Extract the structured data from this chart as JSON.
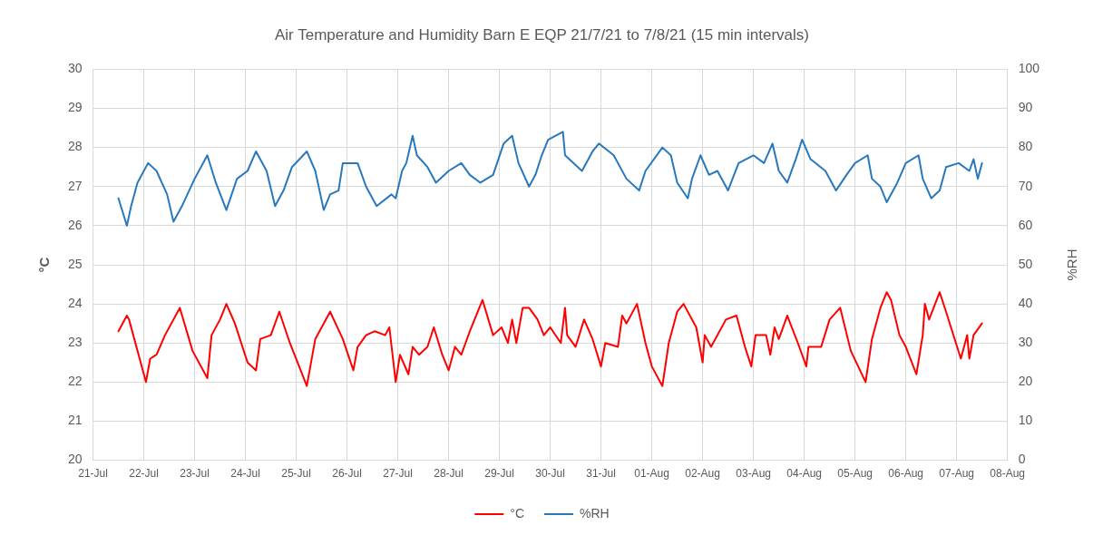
{
  "chart_data": {
    "type": "line",
    "title": "Air Temperature and Humidity Barn E EQP 21/7/21 to 7/8/21 (15 min intervals)",
    "ylabel": "°C",
    "y2label": "%RH",
    "xlim": [
      "--07-21",
      "--08-08"
    ],
    "xticks": [
      {
        "value": "--07-21",
        "label": "21-Jul"
      },
      {
        "value": "--07-22",
        "label": "22-Jul"
      },
      {
        "value": "--07-23",
        "label": "23-Jul"
      },
      {
        "value": "--07-24",
        "label": "24-Jul"
      },
      {
        "value": "--07-25",
        "label": "25-Jul"
      },
      {
        "value": "--07-26",
        "label": "26-Jul"
      },
      {
        "value": "--07-27",
        "label": "27-Jul"
      },
      {
        "value": "--07-28",
        "label": "28-Jul"
      },
      {
        "value": "--07-29",
        "label": "29-Jul"
      },
      {
        "value": "--07-30",
        "label": "30-Jul"
      },
      {
        "value": "--07-31",
        "label": "31-Jul"
      },
      {
        "value": "--08-01",
        "label": "01-Aug"
      },
      {
        "value": "--08-02",
        "label": "02-Aug"
      },
      {
        "value": "--08-03",
        "label": "03-Aug"
      },
      {
        "value": "--08-04",
        "label": "04-Aug"
      },
      {
        "value": "--08-05",
        "label": "05-Aug"
      },
      {
        "value": "--08-06",
        "label": "06-Aug"
      },
      {
        "value": "--08-07",
        "label": "07-Aug"
      },
      {
        "value": "--08-08",
        "label": "08-Aug"
      }
    ],
    "ylim": [
      20,
      30
    ],
    "yticks": [
      20,
      21,
      22,
      23,
      24,
      25,
      26,
      27,
      28,
      29,
      30
    ],
    "y2lim": [
      0,
      100
    ],
    "y2ticks": [
      0,
      10,
      20,
      30,
      40,
      50,
      60,
      70,
      80,
      90,
      100
    ],
    "grid": true,
    "legend": "bottom",
    "series": [
      {
        "name": "°C",
        "color": "#ff0000",
        "x": [
          "--07-21T12:00",
          "--07-21T16:00",
          "--07-21T17:00",
          "--07-22T01:00",
          "--07-22T03:00",
          "--07-22T06:00",
          "--07-22T10:00",
          "--07-22T17:00",
          "--07-22T23:00",
          "--07-23T06:00",
          "--07-23T08:00",
          "--07-23T12:00",
          "--07-23T15:00",
          "--07-23T19:00",
          "--07-24T01:00",
          "--07-24T05:00",
          "--07-24T07:00",
          "--07-24T12:00",
          "--07-24T16:00",
          "--07-24T21:00",
          "--07-25T05:00",
          "--07-25T09:00",
          "--07-25T16:00",
          "--07-25T22:00",
          "--07-26T03:00",
          "--07-26T05:00",
          "--07-26T09:00",
          "--07-26T13:00",
          "--07-26T18:00",
          "--07-26T20:00",
          "--07-26T23:00",
          "--07-27T01:00",
          "--07-27T05:00",
          "--07-27T07:00",
          "--07-27T10:00",
          "--07-27T14:00",
          "--07-27T17:00",
          "--07-27T21:00",
          "--07-28T00:00",
          "--07-28T03:00",
          "--07-28T06:00",
          "--07-28T10:00",
          "--07-28T16:00",
          "--07-28T21:00",
          "--07-29T01:00",
          "--07-29T04:00",
          "--07-29T06:00",
          "--07-29T08:00",
          "--07-29T11:00",
          "--07-29T14:00",
          "--07-29T18:00",
          "--07-29T21:00",
          "--07-30T00:00",
          "--07-30T05:00",
          "--07-30T07:00",
          "--07-30T08:00",
          "--07-30T12:00",
          "--07-30T16:00",
          "--07-30T20:00",
          "--07-31T00:00",
          "--07-31T02:00",
          "--07-31T08:00",
          "--07-31T10:00",
          "--07-31T12:00",
          "--07-31T17:00",
          "--07-31T21:00",
          "--08-01T00:00",
          "--08-01T05:00",
          "--08-01T08:00",
          "--08-01T12:00",
          "--08-01T15:00",
          "--08-01T21:00",
          "--08-02T00:00",
          "--08-02T01:00",
          "--08-02T04:00",
          "--08-02T11:00",
          "--08-02T16:00",
          "--08-02T20:00",
          "--08-02T23:00",
          "--08-03T01:00",
          "--08-03T06:00",
          "--08-03T08:00",
          "--08-03T10:00",
          "--08-03T12:00",
          "--08-03T16:00",
          "--08-03T21:00",
          "--08-04T01:00",
          "--08-04T02:00",
          "--08-04T08:00",
          "--08-04T12:00",
          "--08-04T17:00",
          "--08-04T22:00",
          "--08-05T05:00",
          "--08-05T08:00",
          "--08-05T12:00",
          "--08-05T15:00",
          "--08-05T17:00",
          "--08-05T21:00",
          "--08-06T00:00",
          "--08-06T05:00",
          "--08-06T08:00",
          "--08-06T09:00",
          "--08-06T11:00",
          "--08-06T16:00",
          "--08-06T19:00",
          "--08-07T02:00",
          "--08-07T05:00",
          "--08-07T06:00",
          "--08-07T08:00",
          "--08-07T12:00"
        ],
        "values": [
          23.3,
          23.7,
          23.6,
          22.0,
          22.6,
          22.7,
          23.2,
          23.9,
          22.8,
          22.1,
          23.2,
          23.6,
          24.0,
          23.5,
          22.5,
          22.3,
          23.1,
          23.2,
          23.8,
          23.0,
          21.9,
          23.1,
          23.8,
          23.1,
          22.3,
          22.9,
          23.2,
          23.3,
          23.2,
          23.4,
          22.0,
          22.7,
          22.2,
          22.9,
          22.7,
          22.9,
          23.4,
          22.7,
          22.3,
          22.9,
          22.7,
          23.3,
          24.1,
          23.2,
          23.4,
          23.0,
          23.6,
          23.0,
          23.9,
          23.9,
          23.6,
          23.2,
          23.4,
          23.0,
          23.9,
          23.2,
          22.9,
          23.6,
          23.1,
          22.4,
          23.0,
          22.9,
          23.7,
          23.5,
          24.0,
          23.0,
          22.4,
          21.9,
          23.0,
          23.8,
          24.0,
          23.4,
          22.5,
          23.2,
          22.9,
          23.6,
          23.7,
          22.9,
          22.4,
          23.2,
          23.2,
          22.7,
          23.4,
          23.1,
          23.7,
          23.0,
          22.4,
          22.9,
          22.9,
          23.6,
          23.9,
          22.8,
          22.0,
          23.1,
          23.9,
          24.3,
          24.1,
          23.2,
          22.9,
          22.2,
          23.2,
          24.0,
          23.6,
          24.3,
          23.8,
          22.6,
          23.2,
          22.6,
          23.2,
          23.5
        ]
      },
      {
        "name": "%RH",
        "color": "#2878bd",
        "axis": "y2",
        "x": [
          "--07-21T12:00",
          "--07-21T16:00",
          "--07-21T18:00",
          "--07-21T21:00",
          "--07-22T02:00",
          "--07-22T06:00",
          "--07-22T11:00",
          "--07-22T14:00",
          "--07-22T18:00",
          "--07-23T00:00",
          "--07-23T06:00",
          "--07-23T10:00",
          "--07-23T15:00",
          "--07-23T20:00",
          "--07-24T01:00",
          "--07-24T05:00",
          "--07-24T10:00",
          "--07-24T14:00",
          "--07-24T18:00",
          "--07-24T22:00",
          "--07-25T05:00",
          "--07-25T09:00",
          "--07-25T13:00",
          "--07-25T16:00",
          "--07-25T20:00",
          "--07-25T22:00",
          "--07-26T05:00",
          "--07-26T09:00",
          "--07-26T14:00",
          "--07-26T21:00",
          "--07-26T23:00",
          "--07-27T02:00",
          "--07-27T04:00",
          "--07-27T07:00",
          "--07-27T09:00",
          "--07-27T14:00",
          "--07-27T18:00",
          "--07-28T00:00",
          "--07-28T06:00",
          "--07-28T10:00",
          "--07-28T15:00",
          "--07-28T21:00",
          "--07-29T02:00",
          "--07-29T06:00",
          "--07-29T09:00",
          "--07-29T14:00",
          "--07-29T17:00",
          "--07-29T20:00",
          "--07-29T23:00",
          "--07-30T06:00",
          "--07-30T07:00",
          "--07-30T15:00",
          "--07-30T20:00",
          "--07-30T23:00",
          "--07-31T06:00",
          "--07-31T12:00",
          "--07-31T18:00",
          "--07-31T21:00",
          "--08-01T05:00",
          "--08-01T09:00",
          "--08-01T12:00",
          "--08-01T17:00",
          "--08-01T19:00",
          "--08-01T23:00",
          "--08-02T03:00",
          "--08-02T07:00",
          "--08-02T12:00",
          "--08-02T17:00",
          "--08-03T00:00",
          "--08-03T05:00",
          "--08-03T09:00",
          "--08-03T12:00",
          "--08-03T16:00",
          "--08-03T20:00",
          "--08-03T23:00",
          "--08-04T03:00",
          "--08-04T10:00",
          "--08-04T15:00",
          "--08-04T20:00",
          "--08-05T00:00",
          "--08-05T06:00",
          "--08-05T08:00",
          "--08-05T12:00",
          "--08-05T15:00",
          "--08-05T20:00",
          "--08-06T00:00",
          "--08-06T06:00",
          "--08-06T08:00",
          "--08-06T12:00",
          "--08-06T16:00",
          "--08-06T19:00",
          "--08-07T01:00",
          "--08-07T06:00",
          "--08-07T08:00",
          "--08-07T10:00",
          "--08-07T12:00"
        ],
        "values": [
          67,
          60,
          65,
          71,
          76,
          74,
          68,
          61,
          65,
          72,
          78,
          71,
          64,
          72,
          74,
          79,
          74,
          65,
          69,
          75,
          79,
          74,
          64,
          68,
          69,
          76,
          76,
          70,
          65,
          68,
          67,
          74,
          76,
          83,
          78,
          75,
          71,
          74,
          76,
          73,
          71,
          73,
          81,
          83,
          76,
          70,
          73,
          78,
          82,
          84,
          78,
          74,
          79,
          81,
          78,
          72,
          69,
          74,
          80,
          78,
          71,
          67,
          72,
          78,
          73,
          74,
          69,
          76,
          78,
          76,
          81,
          74,
          71,
          77,
          82,
          77,
          74,
          69,
          73,
          76,
          78,
          72,
          70,
          66,
          71,
          76,
          78,
          72,
          67,
          69,
          75,
          76,
          74,
          77,
          72,
          76
        ]
      }
    ]
  }
}
